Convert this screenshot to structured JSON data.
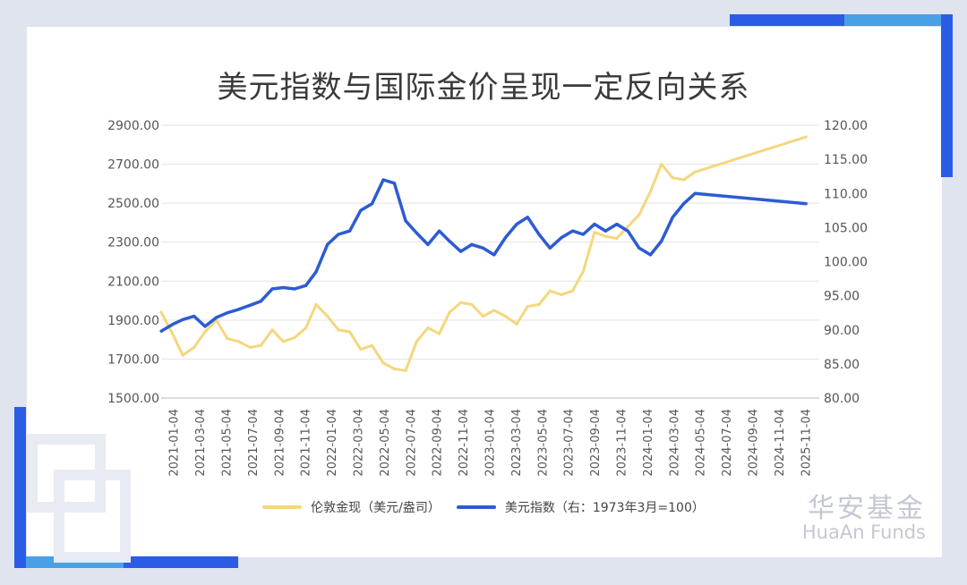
{
  "title": "美元指数与国际金价呈现一定反向关系",
  "colors": {
    "gold": "#f4d77e",
    "dxy": "#2d5bd4",
    "background": "#dfe4ee",
    "accent_blue": "#2a5ce6",
    "accent_light": "#4aa0e6",
    "brand_gray": "#c4c8d1"
  },
  "brand": {
    "cn": "华安基金",
    "en": "HuaAn Funds"
  },
  "chart_data": {
    "type": "line",
    "title": "美元指数与国际金价呈现一定反向关系",
    "x_ticks": [
      "2021-01-04",
      "2021-03-04",
      "2021-05-04",
      "2021-07-04",
      "2021-09-04",
      "2021-11-04",
      "2022-01-04",
      "2022-03-04",
      "2022-05-04",
      "2022-07-04",
      "2022-09-04",
      "2022-11-04",
      "2023-01-04",
      "2023-03-04",
      "2023-05-04",
      "2023-07-04",
      "2023-09-04",
      "2023-11-04",
      "2024-01-04",
      "2024-03-04",
      "2024-05-04",
      "2024-07-04",
      "2024-09-04",
      "2024-11-04",
      "2025-11-04"
    ],
    "y_left": {
      "ylim": [
        1500,
        2900
      ],
      "ticks": [
        "1500.00",
        "1700.00",
        "1900.00",
        "2100.00",
        "2300.00",
        "2500.00",
        "2700.00",
        "2900.00"
      ]
    },
    "y_right": {
      "ylim": [
        80,
        120
      ],
      "ticks": [
        "80.00",
        "85.00",
        "90.00",
        "95.00",
        "100.00",
        "105.00",
        "110.00",
        "115.00",
        "120.00"
      ]
    },
    "grid": "horizontal",
    "legend_position": "bottom",
    "series": [
      {
        "name": "伦敦金现（美元/盎司）",
        "axis": "left",
        "color": "#f4d77e",
        "x": [
          "2021-01-04",
          "2021-02-04",
          "2021-03-04",
          "2021-04-04",
          "2021-05-04",
          "2021-06-04",
          "2021-07-04",
          "2021-08-04",
          "2021-09-04",
          "2021-10-04",
          "2021-11-04",
          "2021-12-04",
          "2022-01-04",
          "2022-02-04",
          "2022-03-04",
          "2022-04-04",
          "2022-05-04",
          "2022-06-04",
          "2022-07-04",
          "2022-08-04",
          "2022-09-04",
          "2022-10-04",
          "2022-11-04",
          "2022-12-04",
          "2023-01-04",
          "2023-02-04",
          "2023-03-04",
          "2023-04-04",
          "2023-05-04",
          "2023-06-04",
          "2023-07-04",
          "2023-08-04",
          "2023-09-04",
          "2023-10-04",
          "2023-11-04",
          "2023-12-04",
          "2024-01-04",
          "2024-02-04",
          "2024-03-04",
          "2024-04-04",
          "2024-05-04",
          "2024-06-04",
          "2024-07-04",
          "2024-08-04",
          "2024-09-04",
          "2024-10-04",
          "2024-11-04",
          "2024-12-04",
          "2025-01-04",
          "2025-11-04"
        ],
        "values": [
          1940,
          1830,
          1720,
          1760,
          1840,
          1900,
          1805,
          1790,
          1760,
          1770,
          1850,
          1790,
          1810,
          1860,
          1980,
          1920,
          1850,
          1840,
          1750,
          1770,
          1680,
          1650,
          1640,
          1790,
          1860,
          1830,
          1940,
          1990,
          1980,
          1920,
          1950,
          1920,
          1880,
          1970,
          1980,
          2050,
          2030,
          2050,
          2150,
          2350,
          2330,
          2320,
          2380,
          2440,
          2560,
          2700,
          2630,
          2620,
          2660,
          2840
        ]
      },
      {
        "name": "美元指数（右：1973年3月=100）",
        "axis": "right",
        "color": "#2d5bd4",
        "x": [
          "2021-01-04",
          "2021-02-04",
          "2021-03-04",
          "2021-04-04",
          "2021-05-04",
          "2021-06-04",
          "2021-07-04",
          "2021-08-04",
          "2021-09-04",
          "2021-10-04",
          "2021-11-04",
          "2021-12-04",
          "2022-01-04",
          "2022-02-04",
          "2022-03-04",
          "2022-04-04",
          "2022-05-04",
          "2022-06-04",
          "2022-07-04",
          "2022-08-04",
          "2022-09-04",
          "2022-10-04",
          "2022-11-04",
          "2022-12-04",
          "2023-01-04",
          "2023-02-04",
          "2023-03-04",
          "2023-04-04",
          "2023-05-04",
          "2023-06-04",
          "2023-07-04",
          "2023-08-04",
          "2023-09-04",
          "2023-10-04",
          "2023-11-04",
          "2023-12-04",
          "2024-01-04",
          "2024-02-04",
          "2024-03-04",
          "2024-04-04",
          "2024-05-04",
          "2024-06-04",
          "2024-07-04",
          "2024-08-04",
          "2024-09-04",
          "2024-10-04",
          "2024-11-04",
          "2024-12-04",
          "2025-01-04",
          "2025-11-04"
        ],
        "values": [
          89.8,
          90.8,
          91.5,
          92.0,
          90.5,
          91.8,
          92.5,
          93.0,
          93.6,
          94.2,
          96.0,
          96.2,
          96.0,
          96.5,
          98.5,
          102.5,
          104.0,
          104.5,
          107.5,
          108.5,
          112.0,
          111.5,
          106.0,
          104.2,
          102.5,
          104.5,
          103.0,
          101.5,
          102.5,
          102.0,
          101.0,
          103.5,
          105.5,
          106.5,
          104.0,
          102.0,
          103.5,
          104.5,
          104.0,
          105.5,
          104.5,
          105.5,
          104.5,
          102.0,
          101.0,
          103.0,
          106.5,
          108.5,
          110.0,
          108.5
        ]
      }
    ]
  }
}
